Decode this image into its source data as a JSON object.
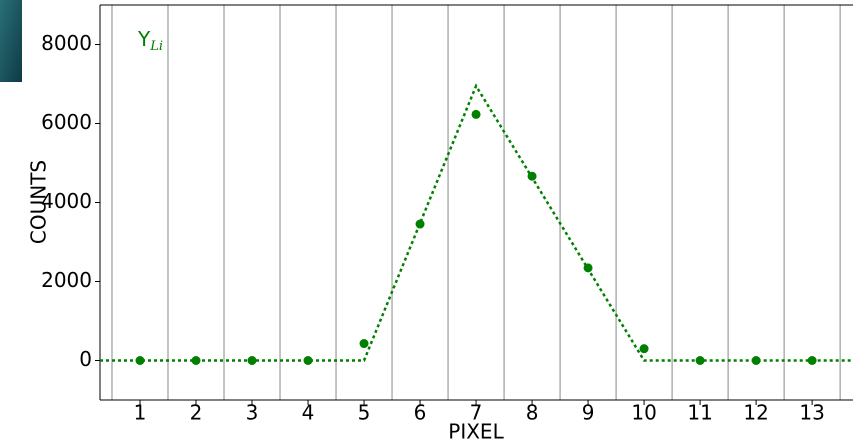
{
  "chart_data": {
    "type": "scatter",
    "xlabel": "PIXEL",
    "ylabel": "COUNTS",
    "xlim": [
      0.286,
      13.73
    ],
    "ylim": [
      -1000,
      9000
    ],
    "xticks": [
      1,
      2,
      3,
      4,
      5,
      6,
      7,
      8,
      9,
      10,
      11,
      12,
      13
    ],
    "yticks": [
      0,
      2000,
      4000,
      6000,
      8000
    ],
    "xgrid": [
      0.5,
      1.5,
      2.5,
      3.5,
      4.5,
      5.5,
      6.5,
      7.5,
      8.5,
      9.5,
      10.5,
      11.5,
      12.5,
      13.5
    ],
    "legend": "upper left",
    "series": [
      {
        "name": "Y",
        "subscript": "Li",
        "color": "#008000",
        "kind": "points",
        "x": [
          1,
          2,
          3,
          4,
          5,
          6,
          7,
          8,
          9,
          10,
          11,
          12,
          13
        ],
        "values": [
          0,
          0,
          0,
          0,
          430,
          3455,
          6230,
          4666,
          2345,
          300,
          0,
          0,
          0
        ]
      },
      {
        "color": "#008000",
        "kind": "dotted-line",
        "x": [
          0.286,
          5,
          7,
          10,
          13.73
        ],
        "values": [
          0,
          0,
          6950,
          0,
          0
        ]
      }
    ]
  }
}
